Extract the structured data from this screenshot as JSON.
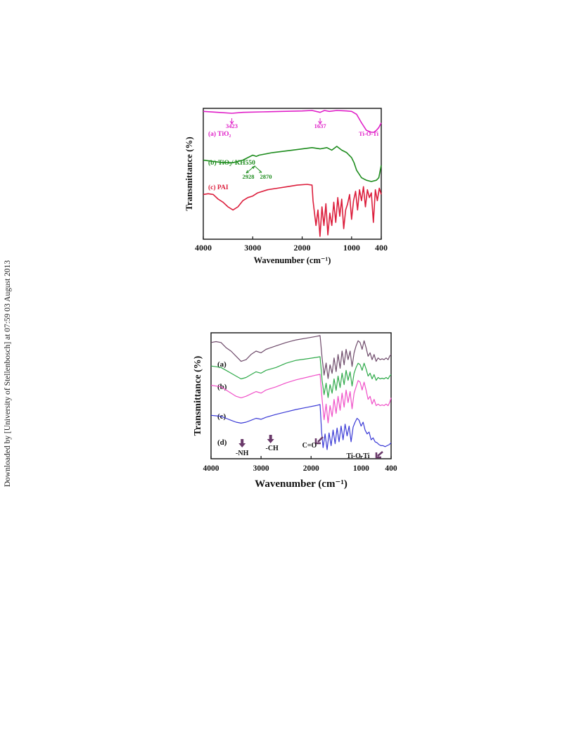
{
  "sidebar": {
    "download_note": "Downloaded by [University of Stellenbosch] at 07:59 03 August 2013"
  },
  "chart_data": [
    {
      "type": "line",
      "xlabel": "Wavenumber (cm⁻¹)",
      "ylabel": "Transmittance (%)",
      "xlim": [
        4000,
        400
      ],
      "xticks": [
        4000,
        3000,
        2000,
        1000,
        400
      ],
      "grid": false,
      "series": [
        {
          "name": "(a) TiO₂",
          "color": "#e020c8",
          "x": [
            4000,
            3700,
            3423,
            3200,
            2800,
            2400,
            2000,
            1800,
            1637,
            1550,
            1450,
            1300,
            1100,
            1000,
            900,
            800,
            700,
            600,
            550,
            500,
            450,
            420,
            400
          ],
          "y": [
            92,
            91,
            90,
            91,
            91.5,
            92,
            92.5,
            93,
            91,
            93,
            92,
            93,
            92.5,
            92,
            89,
            80,
            72,
            70,
            70,
            72,
            75,
            78,
            80
          ]
        },
        {
          "name": "(b) TiO₂/ KH550",
          "color": "#1e8c1e",
          "x": [
            4000,
            3800,
            3600,
            3400,
            3200,
            3000,
            2928,
            2870,
            2600,
            2200,
            1800,
            1637,
            1500,
            1400,
            1300,
            1200,
            1100,
            1000,
            950,
            900,
            800,
            700,
            600,
            500,
            450,
            420,
            400
          ],
          "y": [
            60,
            59.5,
            59,
            59,
            60,
            62,
            61.5,
            62,
            63,
            64,
            65,
            64.5,
            65,
            64,
            65.5,
            64,
            63,
            61,
            59,
            56,
            53,
            52,
            51.5,
            52,
            53,
            56,
            58
          ],
          "annotations": [
            "2928",
            "2870"
          ]
        },
        {
          "name": "(c) PAI",
          "color": "#dc1e3c",
          "x": [
            4000,
            3900,
            3800,
            3700,
            3600,
            3500,
            3400,
            3300,
            3200,
            3100,
            3000,
            2900,
            2700,
            2500,
            2300,
            2100,
            1900,
            1800,
            1780,
            1720,
            1680,
            1640,
            1600,
            1560,
            1520,
            1480,
            1440,
            1400,
            1360,
            1320,
            1280,
            1240,
            1200,
            1160,
            1120,
            1080,
            1040,
            1000,
            960,
            920,
            880,
            840,
            800,
            760,
            720,
            680,
            640,
            600,
            560,
            520,
            480,
            440,
            400
          ],
          "y": [
            30,
            30.5,
            30,
            27,
            25,
            22,
            20,
            22,
            26,
            28,
            29,
            31,
            33,
            34,
            35,
            36,
            36.5,
            36,
            26,
            10,
            20,
            3,
            22,
            10,
            24,
            4,
            18,
            10,
            25,
            12,
            28,
            16,
            27,
            8,
            20,
            24,
            30,
            14,
            26,
            32,
            20,
            33,
            26,
            35,
            22,
            33,
            28,
            31,
            12,
            33,
            26,
            34,
            30
          ]
        }
      ],
      "annotations": [
        {
          "text": "3423",
          "x": 3423
        },
        {
          "text": "1637",
          "x": 1637
        },
        {
          "text": "Ti-O-Ti",
          "x": 560
        }
      ]
    },
    {
      "type": "line",
      "xlabel": "Wavenumber (cm⁻¹)",
      "ylabel": "Transmittance (%)",
      "xlim": [
        4000,
        400
      ],
      "xticks": [
        4000,
        3000,
        2000,
        1000,
        400
      ],
      "grid": false,
      "series": [
        {
          "name": "(a)",
          "color": "#6e4a6a",
          "x": [
            4000,
            3900,
            3800,
            3700,
            3600,
            3500,
            3400,
            3300,
            3200,
            3100,
            3000,
            2900,
            2700,
            2500,
            2300,
            2100,
            1900,
            1820,
            1780,
            1740,
            1700,
            1660,
            1620,
            1580,
            1540,
            1500,
            1460,
            1420,
            1380,
            1340,
            1300,
            1260,
            1220,
            1180,
            1140,
            1100,
            1060,
            1020,
            980,
            940,
            900,
            860,
            820,
            780,
            740,
            700,
            660,
            620,
            580,
            540,
            500,
            460,
            430,
            400
          ],
          "y": [
            95,
            95.5,
            95,
            92,
            90,
            87,
            84,
            85,
            88,
            90,
            89,
            91,
            93,
            95,
            96.5,
            97.5,
            98.5,
            99,
            86,
            76,
            83,
            74,
            82,
            77,
            86,
            78,
            88,
            80,
            90,
            82,
            91,
            85,
            90,
            81,
            89,
            93,
            96,
            95,
            91,
            96,
            92,
            87,
            89,
            85,
            88,
            84,
            86,
            85,
            85.5,
            85,
            86,
            85,
            87,
            88
          ]
        },
        {
          "name": "(b)",
          "color": "#2faa4a",
          "x": [
            4000,
            3900,
            3800,
            3700,
            3600,
            3500,
            3400,
            3300,
            3200,
            3100,
            3000,
            2900,
            2700,
            2500,
            2300,
            2100,
            1900,
            1820,
            1780,
            1740,
            1700,
            1660,
            1620,
            1580,
            1540,
            1500,
            1460,
            1420,
            1380,
            1340,
            1300,
            1260,
            1220,
            1180,
            1140,
            1100,
            1060,
            1020,
            980,
            940,
            900,
            860,
            820,
            780,
            740,
            700,
            660,
            620,
            580,
            540,
            500,
            460,
            430,
            400
          ],
          "y": [
            80,
            79.5,
            79,
            77,
            75,
            73,
            71,
            72,
            74,
            76,
            75,
            77,
            79,
            82,
            84,
            85,
            86,
            86.5,
            70,
            60,
            68,
            58,
            67,
            61,
            71,
            63,
            73,
            65,
            75,
            67,
            77,
            70,
            76,
            66,
            75,
            79,
            82,
            81,
            77,
            82,
            78,
            73,
            75,
            71,
            74,
            70,
            72,
            71,
            71.5,
            71,
            72,
            71,
            73,
            74
          ]
        },
        {
          "name": "(c)",
          "color": "#f050c8",
          "x": [
            4000,
            3900,
            3800,
            3700,
            3600,
            3500,
            3400,
            3300,
            3200,
            3100,
            3000,
            2900,
            2700,
            2500,
            2300,
            2100,
            1900,
            1820,
            1780,
            1740,
            1700,
            1660,
            1620,
            1580,
            1540,
            1500,
            1460,
            1420,
            1380,
            1340,
            1300,
            1260,
            1220,
            1180,
            1140,
            1100,
            1060,
            1020,
            980,
            940,
            900,
            860,
            820,
            780,
            740,
            700,
            660,
            620,
            580,
            540,
            500,
            460,
            430,
            400
          ],
          "y": [
            64,
            63.5,
            63,
            61,
            59,
            57,
            56,
            57,
            58.5,
            60,
            59,
            61,
            63,
            65.5,
            67.5,
            69,
            70.5,
            71,
            55,
            42,
            52,
            40,
            51,
            44,
            55,
            46,
            57,
            48,
            59,
            50,
            61,
            53,
            60,
            49,
            59,
            63,
            67,
            66,
            61,
            66,
            61,
            55,
            57,
            52,
            55,
            51,
            52,
            51,
            51.5,
            51,
            52,
            51,
            53,
            56
          ]
        },
        {
          "name": "(d)",
          "color": "#3a3ad6",
          "x": [
            4000,
            3900,
            3800,
            3700,
            3600,
            3500,
            3400,
            3300,
            3200,
            3100,
            3000,
            2900,
            2700,
            2500,
            2300,
            2100,
            1900,
            1820,
            1790,
            1760,
            1720,
            1680,
            1640,
            1600,
            1560,
            1520,
            1480,
            1440,
            1400,
            1360,
            1320,
            1280,
            1240,
            1200,
            1160,
            1120,
            1080,
            1040,
            1000,
            960,
            920,
            880,
            840,
            800,
            760,
            720,
            680,
            640,
            600,
            560,
            520,
            480,
            440,
            400
          ],
          "y": [
            45,
            44.5,
            44,
            42,
            40,
            38,
            37,
            38,
            40,
            42,
            41,
            43,
            46,
            48.5,
            51,
            53,
            55,
            56,
            28,
            12,
            26,
            10,
            27,
            14,
            30,
            16,
            32,
            18,
            34,
            20,
            36,
            24,
            34,
            18,
            33,
            38,
            42,
            40,
            34,
            38,
            30,
            26,
            28,
            20,
            22,
            18,
            17,
            15,
            14,
            14,
            13,
            14,
            15,
            17
          ]
        }
      ],
      "annotations": [
        {
          "text": "-NH",
          "x": 3350
        },
        {
          "text": "-CH",
          "x": 2950
        },
        {
          "text": "C=O",
          "x": 1830
        },
        {
          "text": "Ti-O-Ti",
          "x": 800
        }
      ]
    }
  ]
}
